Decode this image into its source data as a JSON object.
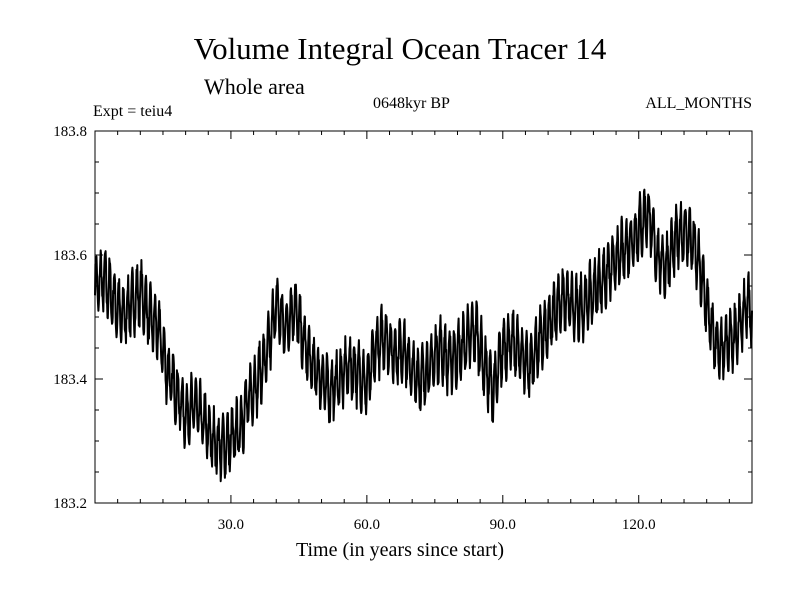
{
  "title": "Volume Integral Ocean Tracer 14",
  "subtitle": "Whole area",
  "experiment_label": "Expt = teiu4",
  "period_label": "0648kyr BP",
  "months_label": "ALL_MONTHS",
  "colors": {
    "line": "#000000",
    "axis": "#000000",
    "background": "#ffffff"
  },
  "chart_data": {
    "type": "line",
    "title": "Volume Integral Ocean Tracer 14",
    "subtitle": "Whole area",
    "xlabel": "Time (in years since start)",
    "ylabel": "",
    "xlim": [
      0,
      145
    ],
    "ylim": [
      183.2,
      183.8
    ],
    "x_ticks": [
      30,
      60,
      90,
      120
    ],
    "x_tick_labels": [
      "30.0",
      "60.0",
      "90.0",
      "120.0"
    ],
    "y_ticks": [
      183.2,
      183.4,
      183.6,
      183.8
    ],
    "y_tick_labels": [
      "183.2",
      "183.4",
      "183.6",
      "183.8"
    ],
    "samples_per_year": 12,
    "seasonal_amplitude": 0.045,
    "series": [
      {
        "name": "Volume Integral Ocean Tracer 14",
        "x": [
          0,
          2,
          4,
          6,
          8,
          10,
          12,
          14,
          16,
          18,
          20,
          22,
          24,
          26,
          28,
          30,
          32,
          34,
          36,
          38,
          40,
          42,
          44,
          46,
          48,
          50,
          52,
          54,
          56,
          58,
          60,
          62,
          64,
          66,
          68,
          70,
          72,
          74,
          76,
          78,
          80,
          82,
          84,
          86,
          88,
          90,
          92,
          94,
          96,
          98,
          100,
          102,
          104,
          106,
          108,
          110,
          112,
          114,
          116,
          118,
          120,
          122,
          124,
          126,
          128,
          130,
          132,
          134,
          136,
          138,
          140,
          142,
          144,
          145
        ],
        "values": [
          183.55,
          183.56,
          183.53,
          183.5,
          183.52,
          183.54,
          183.5,
          183.48,
          183.41,
          183.38,
          183.34,
          183.36,
          183.33,
          183.3,
          183.29,
          183.3,
          183.32,
          183.37,
          183.4,
          183.44,
          183.52,
          183.48,
          183.52,
          183.46,
          183.42,
          183.4,
          183.38,
          183.4,
          183.42,
          183.41,
          183.39,
          183.45,
          183.47,
          183.44,
          183.45,
          183.41,
          183.4,
          183.42,
          183.45,
          183.43,
          183.44,
          183.46,
          183.48,
          183.42,
          183.38,
          183.45,
          183.46,
          183.44,
          183.42,
          183.46,
          183.48,
          183.52,
          183.53,
          183.51,
          183.52,
          183.54,
          183.56,
          183.58,
          183.6,
          183.62,
          183.64,
          183.67,
          183.6,
          183.58,
          183.62,
          183.64,
          183.62,
          183.56,
          183.48,
          183.44,
          183.46,
          183.48,
          183.52,
          183.5
        ]
      }
    ]
  }
}
